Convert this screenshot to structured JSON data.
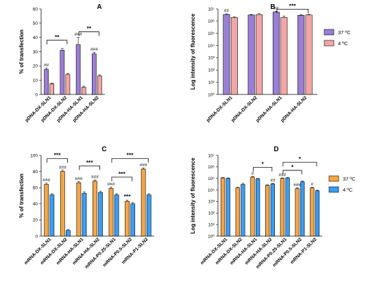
{
  "chart_data": [
    {
      "panel": "A",
      "type": "bar",
      "ylabel": "% of transfection",
      "yscale": "linear",
      "ylim": [
        0,
        60
      ],
      "yticks": [
        "0",
        "10",
        "20",
        "30",
        "40",
        "50",
        "60"
      ],
      "categories": [
        "pDNA-DX-SLN1",
        "pDNA-DX-SLN2",
        "pDNA-HA-SLN1",
        "pDNA-HA-SLN2"
      ],
      "series": [
        {
          "name": "37 ºC",
          "color": "#9b7fd4",
          "values": [
            17.5,
            31,
            35,
            28.5
          ],
          "errors": [
            1,
            1.2,
            5,
            1
          ],
          "annotations": [
            "##",
            "",
            "###",
            "###"
          ]
        },
        {
          "name": "4 ºC",
          "color": "#f4a6a6",
          "values": [
            7.5,
            14,
            5,
            13
          ],
          "errors": [
            0.5,
            0.8,
            0.8,
            0.6
          ],
          "annotations": [
            "",
            "",
            "",
            ""
          ]
        }
      ],
      "brackets": [
        {
          "from": 0,
          "to": 1,
          "label": "**",
          "y": 38
        },
        {
          "from": 2,
          "to": 3,
          "label": "**",
          "y": 44
        }
      ]
    },
    {
      "panel": "B",
      "type": "bar",
      "ylabel": "Log intensity of fluorescence",
      "yscale": "log",
      "ylim": [
        1,
        10000000
      ],
      "yticks": [
        "10⁰",
        "10¹",
        "10²",
        "10³",
        "10⁴",
        "10⁵",
        "10⁶",
        "10⁷"
      ],
      "categories": [
        "pDNA-DX-SLN1",
        "pDNA-DX-SLN2",
        "pDNA-HA-SLN1",
        "pDNA-HA-SLN2"
      ],
      "series": [
        {
          "name": "37 ºC",
          "color": "#9b7fd4",
          "values": [
            3500000,
            3200000,
            5500000,
            3000000
          ],
          "errors": [
            500000,
            300000,
            800000,
            300000
          ],
          "annotations": [
            "##",
            "",
            "##",
            ""
          ]
        },
        {
          "name": "4 ºC",
          "color": "#f4a6a6",
          "values": [
            2000000,
            3400000,
            2000000,
            3200000
          ],
          "errors": [
            200000,
            900000,
            500000,
            400000
          ],
          "annotations": [
            "",
            "",
            "",
            ""
          ]
        }
      ],
      "brackets": [
        {
          "from": 2,
          "to": 3,
          "label": "***",
          "y": 9500000
        }
      ],
      "legend": {
        "position": "right",
        "entries": [
          "37 ºC",
          "4 ºC"
        ]
      }
    },
    {
      "panel": "C",
      "type": "bar",
      "ylabel": "% of transfection",
      "yscale": "linear",
      "ylim": [
        0,
        100
      ],
      "yticks": [
        "0",
        "20",
        "40",
        "60",
        "80",
        "100"
      ],
      "categories": [
        "mRNA-DX-SLN1",
        "mRNA-DX-SLN2",
        "mRNA-HA-SLN1",
        "mRNA-HA-SLN2",
        "mRNA-P0.25-SLN1",
        "mRNA-P0.5-SLN2",
        "mRNA-P1-SLN2"
      ],
      "series": [
        {
          "name": "37 ºC",
          "color": "#f5a645",
          "values": [
            64,
            80,
            66,
            68,
            59,
            43,
            83
          ],
          "errors": [
            1.5,
            1.5,
            1.5,
            1.5,
            1.5,
            1.5,
            1.5
          ],
          "annotations": [
            "###",
            "###",
            "###",
            "###",
            "###",
            "***",
            "###"
          ]
        },
        {
          "name": "4 ºC",
          "color": "#3a9df5",
          "values": [
            51,
            7,
            53,
            54,
            51,
            40,
            51
          ],
          "errors": [
            1.5,
            1,
            1.5,
            1.5,
            1.5,
            1.5,
            1.5
          ],
          "annotations": [
            "",
            "",
            "",
            "",
            "",
            "",
            ""
          ]
        }
      ],
      "brackets": [
        {
          "from": 0,
          "to": 1,
          "label": "***",
          "y": 96
        },
        {
          "from": 2,
          "to": 3,
          "label": "***",
          "y": 87
        },
        {
          "from": 4,
          "to": 6,
          "label": "***",
          "y": 96
        },
        {
          "from": 4,
          "to": 5,
          "label": "***",
          "y": 73
        }
      ]
    },
    {
      "panel": "D",
      "type": "bar",
      "ylabel": "Log intensity of fluorescence",
      "yscale": "log",
      "ylim": [
        1,
        10000000
      ],
      "yticks": [
        "10⁰",
        "10¹",
        "10²",
        "10³",
        "10⁴",
        "10⁵",
        "10⁶",
        "10⁷"
      ],
      "categories": [
        "mRNA-DX-SLN1",
        "mRNA-DX-SLN2",
        "mRNA-HA-SLN1",
        "mRNA-HA-SLN2",
        "mRNA-P0.25-SLN1",
        "mRNA-P0.5-SLN2",
        "mRNA-P1-SLN2"
      ],
      "series": [
        {
          "name": "37 ºC",
          "color": "#f5a645",
          "values": [
            110000,
            15000,
            130000,
            25000,
            100000,
            13000,
            15000
          ],
          "errors": [
            10000,
            2000,
            15000,
            3000,
            10000,
            2000,
            2000
          ],
          "annotations": [
            "",
            "",
            "#",
            "",
            "###",
            "###",
            "#"
          ]
        },
        {
          "name": "4 ºC",
          "color": "#3a9df5",
          "values": [
            100000,
            30000,
            90000,
            33000,
            110000,
            50000,
            8500
          ],
          "errors": [
            10000,
            8000,
            10000,
            4000,
            10000,
            10000,
            1000
          ],
          "annotations": [
            "",
            "",
            "",
            "##",
            "",
            "",
            ""
          ]
        }
      ],
      "brackets": [
        {
          "from": 2,
          "to": 3,
          "label": "*",
          "y": 900000
        },
        {
          "from": 4,
          "to": 5,
          "label": "*",
          "y": 500000
        },
        {
          "from": 4,
          "to": 6,
          "label": "*",
          "y": 2500000
        }
      ],
      "legend": {
        "position": "right",
        "entries": [
          "37 ºC",
          "4 ºC"
        ]
      }
    }
  ]
}
